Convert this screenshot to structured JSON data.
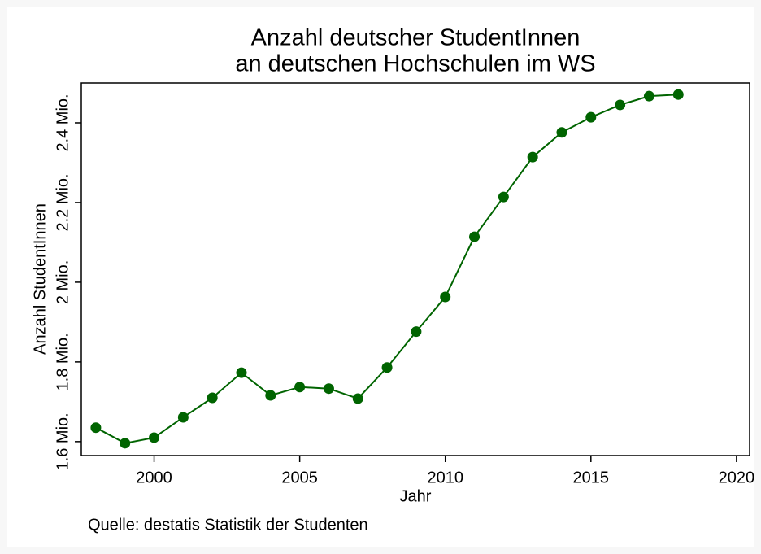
{
  "chart_data": {
    "type": "line",
    "title": [
      "Anzahl deutscher StudentInnen",
      "an deutschen Hochschulen im WS"
    ],
    "xlabel": "Jahr",
    "ylabel": "Anzahl StudentInnen",
    "note": "Quelle: destatis Statistik der Studenten",
    "x": [
      1998,
      1999,
      2000,
      2001,
      2002,
      2003,
      2004,
      2005,
      2006,
      2007,
      2008,
      2009,
      2010,
      2011,
      2012,
      2013,
      2014,
      2015,
      2016,
      2017,
      2018
    ],
    "values": [
      1.635,
      1.596,
      1.61,
      1.661,
      1.71,
      1.773,
      1.716,
      1.737,
      1.733,
      1.708,
      1.786,
      1.876,
      1.963,
      2.114,
      2.214,
      2.314,
      2.376,
      2.414,
      2.445,
      2.467,
      2.471
    ],
    "color": "#006400",
    "xlim": [
      1997.5,
      2020.45
    ],
    "xticks": [
      2000,
      2005,
      2010,
      2015,
      2020
    ],
    "ylim": [
      1.565,
      2.5
    ],
    "yticks": [
      {
        "value": 1.6,
        "label": "1.6 Mio."
      },
      {
        "value": 1.8,
        "label": "1.8 Mio."
      },
      {
        "value": 2.0,
        "label": "2 Mio."
      },
      {
        "value": 2.2,
        "label": "2.2 Mio."
      },
      {
        "value": 2.4,
        "label": "2.4 Mio."
      }
    ],
    "grid": false
  }
}
